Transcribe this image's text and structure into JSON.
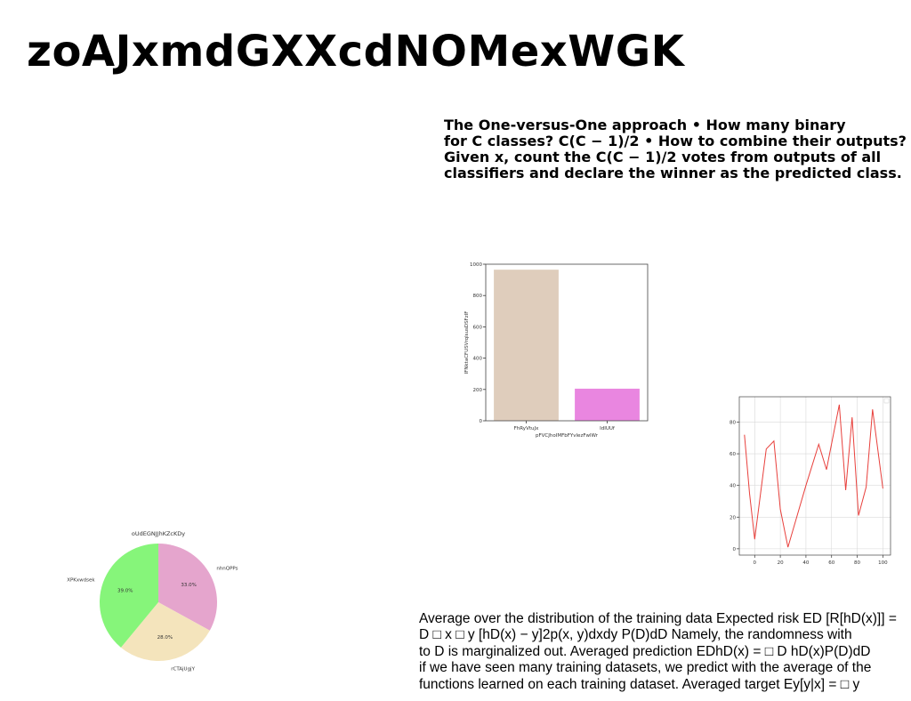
{
  "title": "zoAJxmdGXXcdNOMexWGK",
  "ovo_text": [
    "The One-versus-One approach • How many binary",
    "for C classes? C(C − 1)/2 • How to combine their outputs?",
    "Given x, count the C(C − 1)/2 votes from outputs of all",
    "classifiers and declare the winner as the predicted class."
  ],
  "risk_text": [
    "Average over the distribution of the training data Expected risk ED [R[hD(x)]] =",
    "D □ x □ y [hD(x) − y]2p(x, y)dxdy P(D)dD Namely, the randomness with",
    "to D is marginalized out. Averaged prediction EDhD(x) = □ D hD(x)P(D)dD",
    "if we have seen many training datasets, we predict with the average of the",
    "functions learned on each training dataset. Averaged target Ey[y|x] = □ y"
  ],
  "chart_data": [
    {
      "type": "bar",
      "categories": [
        "FhRyVtuJx",
        "IdIUUf"
      ],
      "values": [
        965,
        205
      ],
      "colors": [
        "#dfcdbc",
        "#e986e0"
      ],
      "title": "",
      "xlabel": "pFVCJhoIMFbFYvlezFwlWr",
      "ylabel": "IFNktaCFUSVrqlsusDSFzIF",
      "ylim": [
        0,
        1000
      ],
      "yticks": [
        0,
        200,
        400,
        600,
        800,
        1000
      ],
      "grid": false
    },
    {
      "type": "line",
      "x": [
        -8,
        -4,
        0,
        9,
        15,
        20,
        26,
        40,
        50,
        56,
        66,
        71,
        76,
        81,
        87,
        92,
        100
      ],
      "values": [
        72,
        35,
        6,
        63,
        68,
        25,
        1,
        40,
        66,
        50,
        91,
        37,
        83,
        21,
        39,
        88,
        38
      ],
      "color": "#e8403c",
      "title": "",
      "xlabel": "",
      "ylabel": "",
      "xlim": [
        -12,
        106
      ],
      "ylim": [
        -4,
        96
      ],
      "xticks": [
        0,
        20,
        40,
        60,
        80,
        100
      ],
      "yticks": [
        0,
        20,
        40,
        60,
        80
      ],
      "grid": true,
      "legend": "top-right"
    },
    {
      "type": "pie",
      "title": "oUdEGNJJhKZcKDy",
      "labels": [
        "nhnQPPs",
        "rCTAjUgjY",
        "XPKxwdsek"
      ],
      "values": [
        33.0,
        28.0,
        39.0
      ],
      "autopct": [
        "33.0%",
        "28.0%",
        "39.0%"
      ],
      "colors": [
        "#e5a5cd",
        "#f4e4bc",
        "#86f57a"
      ],
      "startangle": 90,
      "direction": "clockwise"
    }
  ]
}
